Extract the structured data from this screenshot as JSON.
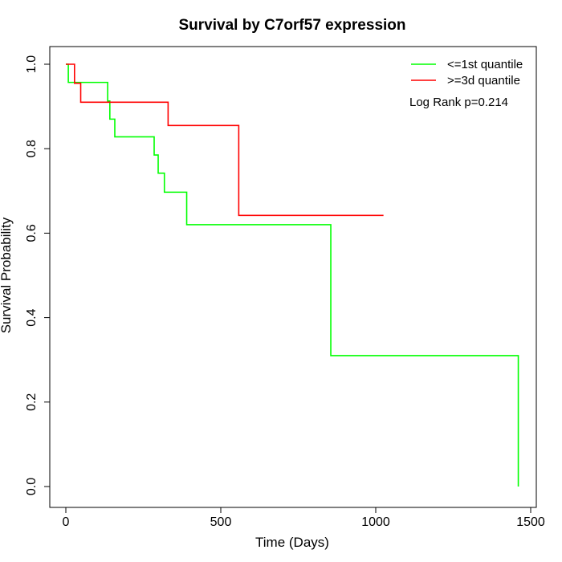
{
  "chart_data": {
    "type": "line",
    "title": "Survival by C7orf57 expression",
    "xlabel": "Time (Days)",
    "ylabel": "Survival Probability",
    "xlim": [
      0,
      1500
    ],
    "ylim": [
      0,
      1
    ],
    "xticks": [
      0,
      500,
      1000,
      1500
    ],
    "xtick_labels": [
      "0",
      "500",
      "1000",
      "1500"
    ],
    "yticks": [
      0,
      0.2,
      0.4,
      0.6,
      0.8,
      1
    ],
    "ytick_labels": [
      "0.0",
      "0.2",
      "0.4",
      "0.6",
      "0.8",
      "1.0"
    ],
    "step": true,
    "grid": false,
    "legend_position": "top-right",
    "annotation": "Log Rank p=0.214",
    "series": [
      {
        "name": "<=1st quantile",
        "color": "#00ff00",
        "x": [
          0,
          8,
          135,
          142,
          158,
          285,
          298,
          318,
          390,
          855,
          1460,
          1460
        ],
        "y": [
          1.0,
          0.957,
          0.913,
          0.87,
          0.828,
          0.785,
          0.742,
          0.697,
          0.62,
          0.31,
          0.31,
          0.0
        ]
      },
      {
        "name": ">=3d quantile",
        "color": "#ff0000",
        "x": [
          0,
          28,
          48,
          330,
          558,
          1025
        ],
        "y": [
          1.0,
          0.955,
          0.91,
          0.855,
          0.642,
          0.642
        ]
      }
    ]
  }
}
